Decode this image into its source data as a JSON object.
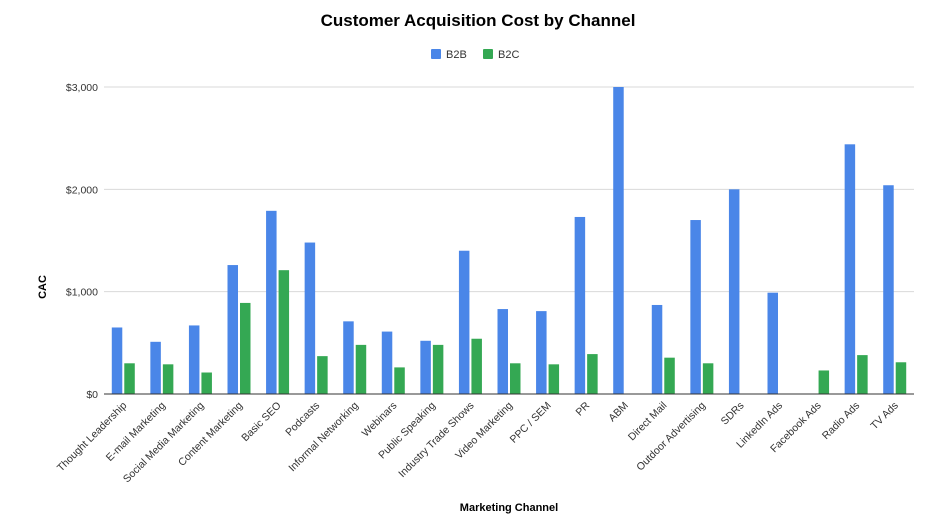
{
  "chart_data": {
    "type": "bar",
    "title": "Customer Acquisition Cost by Channel",
    "xlabel": "Marketing Channel",
    "ylabel": "CAC",
    "ylim": [
      0,
      3000
    ],
    "yticks": [
      0,
      1000,
      2000,
      3000
    ],
    "ytick_labels": [
      "$0",
      "$1,000",
      "$2,000",
      "$3,000"
    ],
    "grid": true,
    "legend_position": "top-center",
    "categories": [
      "Thought Leadership",
      "E-mail Marketing",
      "Social Media Marketing",
      "Content Marketing",
      "Basic SEO",
      "Podcasts",
      "Informal Networking",
      "Webinars",
      "Public Speaking",
      "Industry Trade Shows",
      "Video Marketing",
      "PPC / SEM",
      "PR",
      "ABM",
      "Direct Mail",
      "Outdoor Advertising",
      "SDRs",
      "LinkedIn Ads",
      "Facebook Ads",
      "Radio Ads",
      "TV Ads"
    ],
    "series": [
      {
        "name": "B2B",
        "color": "#4a86e8",
        "values": [
          650,
          510,
          670,
          1260,
          1790,
          1480,
          710,
          610,
          520,
          1400,
          830,
          810,
          1730,
          3010,
          870,
          1700,
          2000,
          990,
          null,
          2440,
          2040
        ]
      },
      {
        "name": "B2C",
        "color": "#34a853",
        "values": [
          300,
          290,
          210,
          890,
          1210,
          370,
          480,
          260,
          480,
          540,
          300,
          290,
          390,
          null,
          355,
          300,
          null,
          null,
          230,
          380,
          310
        ]
      }
    ]
  }
}
